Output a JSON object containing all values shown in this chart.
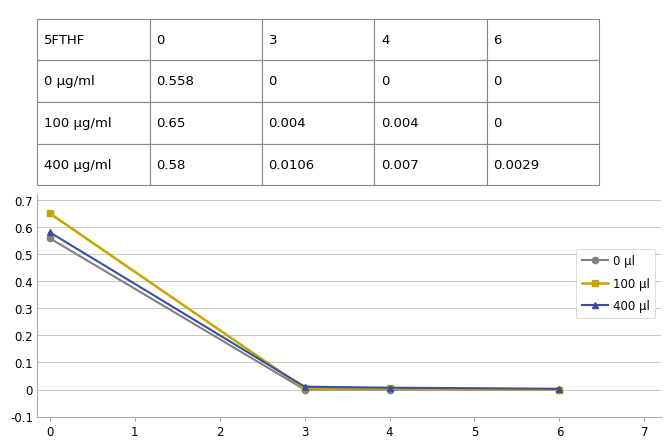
{
  "table": {
    "headers": [
      "5FTHF",
      "0",
      "3",
      "4",
      "6"
    ],
    "rows": [
      [
        "0 µg/ml",
        "0.558",
        "0",
        "0",
        "0"
      ],
      [
        "100 µg/ml",
        "0.65",
        "0.004",
        "0.004",
        "0"
      ],
      [
        "400 µg/ml",
        "0.58",
        "0.0106",
        "0.007",
        "0.0029"
      ]
    ]
  },
  "chart": {
    "x": [
      0,
      3,
      4,
      6
    ],
    "series": [
      {
        "label": "0 µl",
        "values": [
          0.558,
          0,
          0,
          0
        ],
        "color": "#808080",
        "marker": "o",
        "linewidth": 1.5
      },
      {
        "label": "100 µl",
        "values": [
          0.65,
          0.004,
          0.004,
          0
        ],
        "color": "#C8A400",
        "marker": "s",
        "linewidth": 1.8
      },
      {
        "label": "400 µl",
        "values": [
          0.58,
          0.0106,
          0.007,
          0.0029
        ],
        "color": "#3B4FA0",
        "marker": "^",
        "linewidth": 1.5
      }
    ],
    "xlim": [
      -0.15,
      7.2
    ],
    "ylim": [
      -0.1,
      0.72
    ],
    "yticks": [
      -0.1,
      0,
      0.1,
      0.2,
      0.3,
      0.4,
      0.5,
      0.6,
      0.7
    ],
    "ytick_labels": [
      "-0.1",
      "0",
      "0.1",
      "0.2",
      "0.3",
      "0.4",
      "0.5",
      "0.6",
      "0.7"
    ],
    "xticks": [
      0,
      1,
      2,
      3,
      4,
      5,
      6,
      7
    ],
    "grid_color": "#c8c8c8",
    "bg_color": "#ffffff",
    "spine_color": "#aaaaaa"
  }
}
